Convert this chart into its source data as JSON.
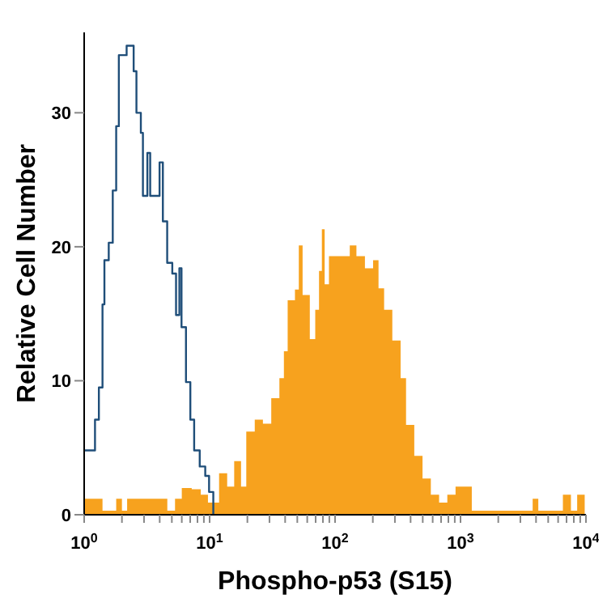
{
  "chart_data": {
    "type": "step",
    "xlabel": "Phospho-p53 (S15)",
    "ylabel": "Relative Cell Number",
    "log": "x",
    "grid": false,
    "xlim": [
      1,
      10000
    ],
    "ylim": [
      0,
      36
    ],
    "yticks": [
      0,
      10,
      20,
      30
    ],
    "xticks": [
      {
        "value": 1,
        "label": "10$^{0}$"
      },
      {
        "value": 2,
        "label": null
      },
      {
        "value": 3,
        "label": null
      },
      {
        "value": 4,
        "label": null
      },
      {
        "value": 5,
        "label": null
      },
      {
        "value": 6,
        "label": null
      },
      {
        "value": 7,
        "label": null
      },
      {
        "value": 8,
        "label": null
      },
      {
        "value": 9,
        "label": null
      },
      {
        "value": 10,
        "label": "10$^{1}$"
      },
      {
        "value": 20,
        "label": null
      },
      {
        "value": 30,
        "label": null
      },
      {
        "value": 40,
        "label": null
      },
      {
        "value": 50,
        "label": null
      },
      {
        "value": 60,
        "label": null
      },
      {
        "value": 70,
        "label": null
      },
      {
        "value": 80,
        "label": null
      },
      {
        "value": 90,
        "label": null
      },
      {
        "value": 100,
        "label": "10$^{2}$"
      },
      {
        "value": 200,
        "label": null
      },
      {
        "value": 300,
        "label": null
      },
      {
        "value": 400,
        "label": null
      },
      {
        "value": 500,
        "label": null
      },
      {
        "value": 600,
        "label": null
      },
      {
        "value": 700,
        "label": null
      },
      {
        "value": 800,
        "label": null
      },
      {
        "value": 900,
        "label": null
      },
      {
        "value": 1000,
        "label": "10$^{3}$"
      },
      {
        "value": 2000,
        "label": null
      },
      {
        "value": 3000,
        "label": null
      },
      {
        "value": 4000,
        "label": null
      },
      {
        "value": 5000,
        "label": null
      },
      {
        "value": 6000,
        "label": null
      },
      {
        "value": 7000,
        "label": null
      },
      {
        "value": 8000,
        "label": null
      },
      {
        "value": 9000,
        "label": null
      },
      {
        "value": 10000,
        "label": "10$^{4}$"
      }
    ],
    "series": [
      {
        "type": "area",
        "color": "#f7a21e",
        "x": [
          1,
          1.4,
          1.8,
          2.0,
          2.2,
          3.0,
          4.0,
          4.6,
          5.3,
          6.0,
          7.2,
          8.5,
          9.7,
          11.9,
          13.8,
          15.7,
          17.8,
          19.6,
          22.9,
          26.6,
          31.0,
          36.0,
          39.1,
          41.9,
          47.9,
          51.4,
          55.1,
          62.9,
          69.5,
          74.5,
          78.5,
          82.6,
          89.4,
          109,
          131,
          148,
          173,
          201,
          222,
          246,
          286,
          333,
          368,
          428,
          498,
          580,
          675,
          785,
          913,
          1230,
          3760,
          4170,
          6550,
          7590,
          8510,
          9770
        ],
        "values": [
          1.2,
          0.3,
          1.2,
          0.3,
          1.2,
          1.2,
          1.2,
          0.3,
          1.2,
          2,
          1.9,
          1.5,
          0.9,
          3.1,
          2.1,
          4.0,
          2.1,
          6.2,
          7.1,
          6.8,
          8.7,
          10.2,
          12.2,
          16,
          16.8,
          20.1,
          16.4,
          13.1,
          15.3,
          18.2,
          21.3,
          17.2,
          19.3,
          19.3,
          20.1,
          19.3,
          18.4,
          19,
          16.9,
          15.3,
          13,
          10.2,
          6.7,
          4.4,
          2.7,
          1.5,
          0.9,
          1.5,
          2.1,
          0.3,
          1.2,
          0.3,
          1.5,
          0.3,
          1.5,
          0.3
        ]
      },
      {
        "type": "step",
        "color": "#1f4e79",
        "x": [
          1,
          1.22,
          1.31,
          1.4,
          1.45,
          1.57,
          1.69,
          1.8,
          1.89,
          2.18,
          2.48,
          2.61,
          2.83,
          2.94,
          3.19,
          3.36,
          3.72,
          3.99,
          4.24,
          4.59,
          5.04,
          5.4,
          5.74,
          5.97,
          6.48,
          7.02,
          7.53,
          8.34,
          9.23,
          9.9,
          10.7
        ],
        "values": [
          4.8,
          7.1,
          9.5,
          15.7,
          19,
          20.3,
          24.2,
          29,
          34.3,
          35,
          33.1,
          30,
          28.5,
          23.8,
          27,
          23.8,
          23.8,
          26.3,
          21.9,
          18.8,
          18,
          14.9,
          18.4,
          14,
          9.9,
          7.1,
          4.8,
          3.6,
          2.9,
          1.7,
          0
        ]
      }
    ]
  }
}
